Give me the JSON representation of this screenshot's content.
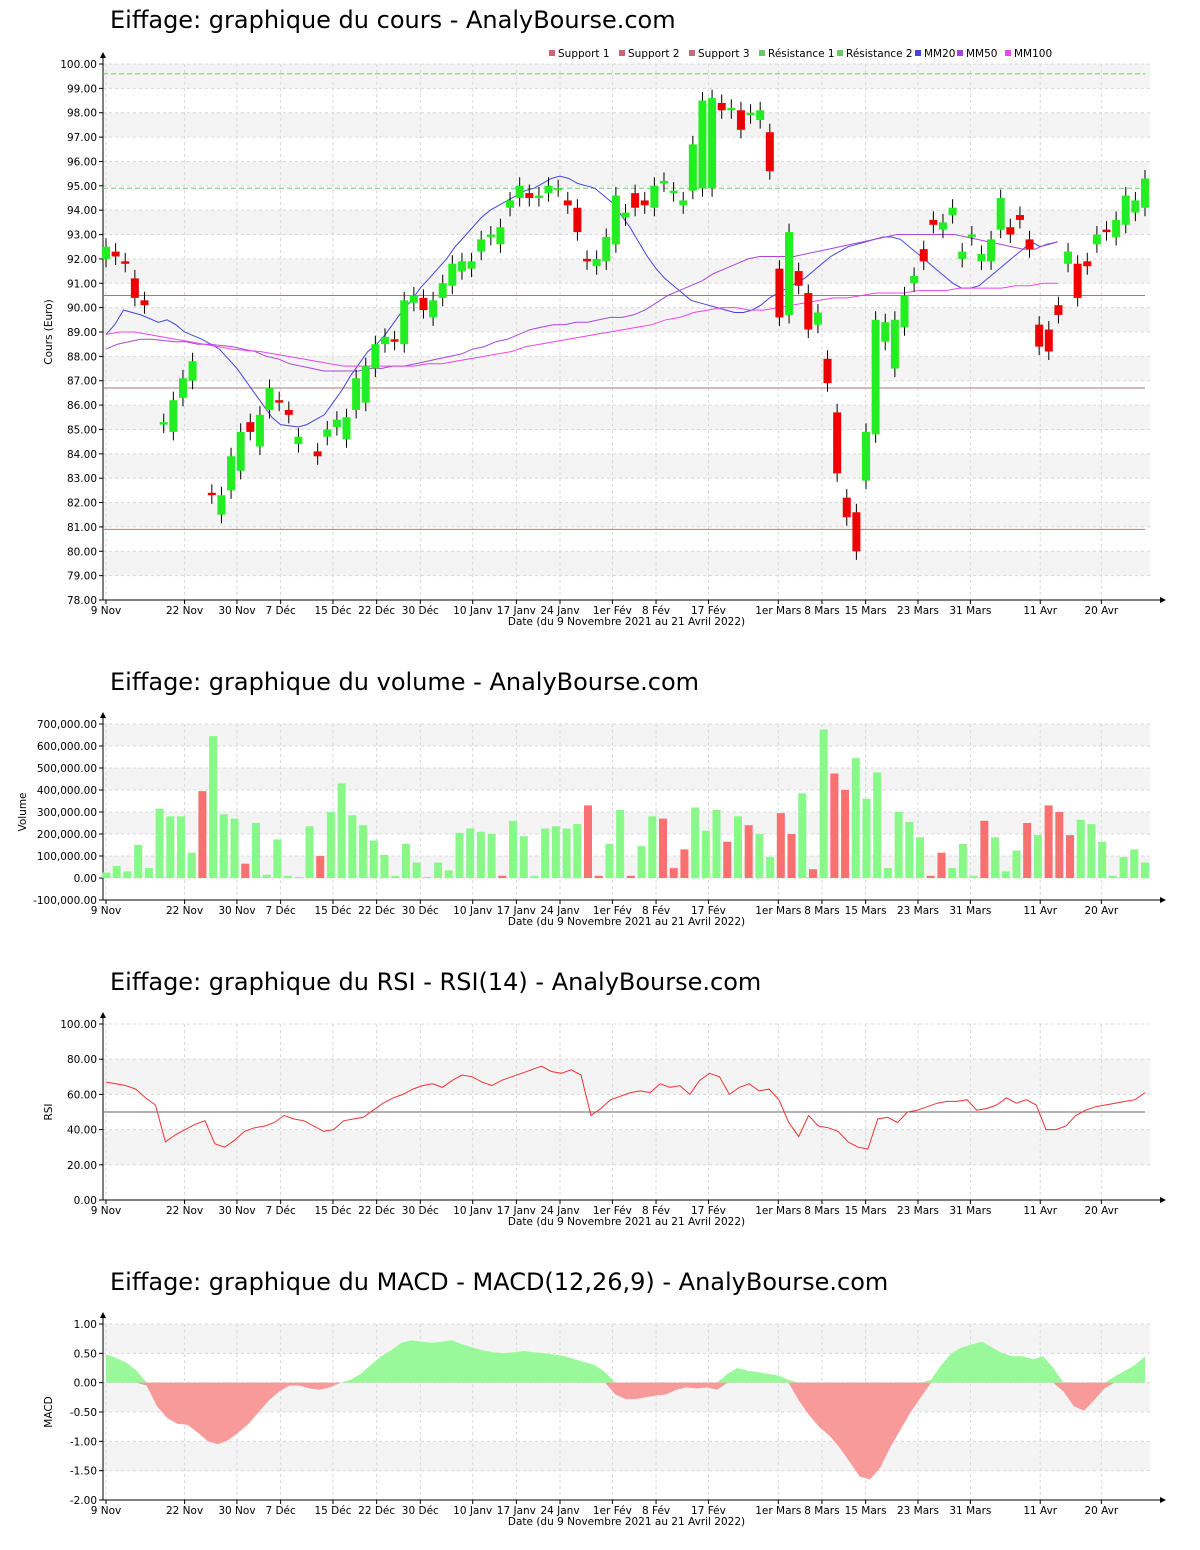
{
  "colors": {
    "up": "#22ee22",
    "down": "#ee0000",
    "vol_up": "#88f888",
    "vol_down": "#f87070",
    "support": "#cc6677",
    "resistance": "#66cc66",
    "mm20": "#4444dd",
    "mm50": "#aa44dd",
    "mm100": "#ee44ee",
    "rsi": "#ee3333"
  },
  "x_ticks": [
    "9 Nov",
    "22 Nov",
    "30 Nov",
    "7 Déc",
    "15 Déc",
    "22 Déc",
    "30 Déc",
    "10 Janv",
    "17 Janv",
    "24 Janv",
    "1er Fév",
    "8 Fév",
    "17 Fév",
    "1er Mars",
    "8 Mars",
    "15 Mars",
    "23 Mars",
    "31 Mars",
    "11 Avr",
    "20 Avr"
  ],
  "x_ticks_index": [
    0,
    9,
    15,
    20,
    26,
    31,
    36,
    42,
    47,
    52,
    58,
    63,
    69,
    77,
    82,
    87,
    93,
    99,
    107,
    114
  ],
  "x_axis_label": "Date (du 9 Novembre 2021 au 21 Avril 2022)",
  "price": {
    "title": "Eiffage: graphique du cours - AnalyBourse.com",
    "ylabel": "Cours (Euro)",
    "ylim": [
      78,
      100
    ],
    "y_ticks": [
      "78.00",
      "79.00",
      "80.00",
      "81.00",
      "82.00",
      "83.00",
      "84.00",
      "85.00",
      "86.00",
      "87.00",
      "88.00",
      "89.00",
      "90.00",
      "91.00",
      "92.00",
      "93.00",
      "94.00",
      "95.00",
      "96.00",
      "97.00",
      "98.00",
      "99.00",
      "100.00"
    ],
    "legend": [
      "Support 1",
      "Support 2",
      "Support 3",
      "Résistance 1",
      "Résistance 2",
      "MM20",
      "MM50",
      "MM100"
    ],
    "support1": 80.9,
    "support2": 86.7,
    "support3": 90.5,
    "resistance1": 94.9,
    "resistance2": 99.6,
    "chart_data": {
      "type": "candlestick",
      "open": [
        92,
        92.3,
        91.9,
        91.2,
        90.3,
        null,
        85.2,
        84.9,
        86.3,
        87,
        null,
        82.4,
        81.5,
        82.5,
        83.3,
        85.3,
        84.3,
        85.8,
        86.2,
        85.8,
        84.4,
        null,
        84.1,
        84.7,
        85.1,
        84.6,
        85.8,
        86.1,
        87.5,
        88.5,
        88.7,
        88.5,
        90.2,
        90.4,
        89.6,
        90.4,
        90.9,
        91.5,
        91.6,
        92.3,
        92.9,
        92.6,
        94.1,
        94.5,
        94.7,
        94.5,
        94.7,
        94.9,
        94.4,
        94.1,
        92,
        91.7,
        91.9,
        92.6,
        93.7,
        94.7,
        94.4,
        94.1,
        95.1,
        94.7,
        94.2,
        94.8,
        94.9,
        94.9,
        98.4,
        98.1,
        98.1,
        97.9,
        97.7,
        97.2,
        91.6,
        89.7,
        91.5,
        90.6,
        89.3,
        87.9,
        85.7,
        82.2,
        81.6,
        82.9,
        84.8,
        88.6,
        87.5,
        89.2,
        91,
        92.4,
        93.6,
        93.2,
        93.8,
        92,
        92.9,
        91.9,
        91.9,
        93.2,
        93.3,
        93.8,
        92.8,
        89.3,
        89.1,
        90.1,
        91.8,
        91.8,
        91.9,
        92.6,
        93.2,
        92.9,
        93.4,
        93.9,
        94.1
      ],
      "close": [
        92.5,
        92.1,
        91.8,
        90.4,
        90.1,
        null,
        85.3,
        86.2,
        87.1,
        87.8,
        null,
        82.3,
        82.3,
        83.9,
        84.9,
        84.9,
        85.6,
        86.7,
        86.1,
        85.6,
        84.7,
        null,
        83.9,
        85,
        85.4,
        85.5,
        87.1,
        87.6,
        88.5,
        88.8,
        88.6,
        90.3,
        90.5,
        89.9,
        90.3,
        91,
        91.8,
        91.9,
        91.9,
        92.8,
        93,
        93.3,
        94.4,
        95,
        94.5,
        94.6,
        95,
        94.9,
        94.2,
        93.1,
        91.9,
        92,
        92.9,
        94.6,
        93.9,
        94.1,
        94.2,
        95,
        95.2,
        94.8,
        94.4,
        96.7,
        98.5,
        98.6,
        98.1,
        98.2,
        97.3,
        98,
        98.1,
        95.6,
        89.6,
        93.1,
        90.9,
        89.1,
        89.8,
        86.9,
        83.2,
        81.4,
        80,
        84.9,
        89.5,
        89.4,
        89.5,
        90.5,
        91.3,
        91.9,
        93.4,
        93.5,
        94.1,
        92.3,
        93,
        92.2,
        92.8,
        94.5,
        93,
        93.6,
        92.4,
        88.4,
        88.2,
        89.7,
        92.3,
        90.4,
        91.7,
        93,
        93.1,
        93.6,
        94.6,
        94.4,
        95.3
      ]
    },
    "mm20": [
      88.9,
      89.3,
      89.9,
      89.8,
      89.7,
      null,
      89.4,
      89.5,
      89.3,
      89,
      null,
      88.7,
      88.5,
      88.3,
      87.9,
      87.5,
      87,
      86.5,
      86,
      85.5,
      85.2,
      null,
      85.1,
      85.2,
      85.4,
      85.6,
      86.1,
      86.6,
      87.2,
      87.7,
      88.2,
      88.5,
      88.9,
      89.4,
      89.9,
      90.3,
      90.8,
      91.2,
      91.6,
      92,
      92.5,
      92.9,
      93.3,
      93.7,
      94,
      94.2,
      94.4,
      94.6,
      94.8,
      94.9,
      95.1,
      95.3,
      95.4,
      95.3,
      95.1,
      95,
      94.9,
      94.6,
      94.3,
      93.8,
      93.3,
      92.7,
      92.1,
      91.6,
      91.2,
      90.9,
      90.6,
      90.3,
      90.2,
      90.1,
      90,
      89.9,
      89.8,
      89.8,
      89.9,
      90.1,
      90.4,
      90.6,
      90.8,
      91,
      91.2,
      91.5,
      91.8,
      92.1,
      92.3,
      92.5,
      92.6,
      92.7,
      92.8,
      92.9,
      92.9,
      92.8,
      92.5,
      92.2,
      91.9,
      91.6,
      91.3,
      91,
      90.8,
      90.8,
      90.9,
      91.2,
      91.5,
      91.8,
      92.1,
      92.4,
      92.7,
      92.5,
      92.6,
      92.7
    ],
    "mm50": [
      88.3,
      88.5,
      88.6,
      88.7,
      88.7,
      null,
      88.6,
      88.6,
      88.5,
      88.5,
      null,
      88.4,
      88.3,
      88.2,
      88,
      87.9,
      87.7,
      87.6,
      87.5,
      87.4,
      87.4,
      null,
      87.4,
      87.5,
      87.5,
      87.6,
      87.6,
      87.7,
      87.8,
      87.9,
      88,
      88.1,
      88.3,
      88.4,
      88.6,
      88.7,
      88.9,
      89.1,
      89.2,
      89.3,
      89.3,
      89.4,
      89.4,
      89.5,
      89.6,
      89.6,
      89.7,
      89.9,
      90.2,
      90.5,
      90.7,
      90.9,
      91.1,
      91.4,
      91.6,
      91.8,
      92,
      92.1,
      92.1,
      92.1,
      92.1,
      92.2,
      92.3,
      92.4,
      92.5,
      92.6,
      92.7,
      92.8,
      92.9,
      93,
      93,
      93,
      93,
      93,
      93,
      92.9,
      92.8,
      92.7,
      92.6,
      92.5,
      92.4,
      92.4,
      92.6,
      92.7
    ],
    "mm100": [
      88.9,
      89,
      89,
      88.9,
      88.8,
      null,
      88.6,
      88.5,
      88.4,
      88.3,
      null,
      88.2,
      88.1,
      88,
      87.9,
      87.8,
      87.7,
      87.6,
      87.6,
      87.6,
      87.6,
      null,
      87.6,
      87.7,
      87.7,
      87.8,
      87.9,
      88,
      88.1,
      88.2,
      88.4,
      88.5,
      88.6,
      88.7,
      88.8,
      88.9,
      89,
      89.1,
      89.2,
      89.3,
      89.5,
      89.6,
      89.8,
      89.9,
      90,
      90,
      89.9,
      89.9,
      90,
      90.1,
      90.2,
      90.3,
      90.4,
      90.4,
      90.5,
      90.6,
      90.6,
      90.6,
      90.7,
      90.7,
      90.7,
      90.8,
      90.8,
      90.8,
      90.8,
      90.9,
      90.9,
      91,
      91
    ]
  },
  "volume": {
    "title": "Eiffage: graphique du volume - AnalyBourse.com",
    "ylabel": "Volume",
    "ylim": [
      -100000,
      700000
    ],
    "y_ticks": [
      "-100,000.00",
      "0.00",
      "100,000.00",
      "200,000.00",
      "300,000.00",
      "400,000.00",
      "500,000.00",
      "600,000.00",
      "700,000.00"
    ],
    "chart_data": {
      "type": "bar",
      "values": [
        25000,
        55000,
        30000,
        150000,
        45000,
        315000,
        280000,
        280000,
        115000,
        395000,
        645000,
        290000,
        270000,
        65000,
        250000,
        15000,
        175000,
        10000,
        5000,
        235000,
        100000,
        300000,
        430000,
        285000,
        240000,
        170000,
        105000,
        10000,
        155000,
        70000,
        5000,
        70000,
        35000,
        205000,
        225000,
        210000,
        200000,
        10000,
        260000,
        190000,
        10000,
        225000,
        235000,
        225000,
        245000,
        330000,
        10000,
        155000,
        310000,
        10000,
        145000,
        280000,
        270000,
        45000,
        130000,
        320000,
        215000,
        310000,
        165000,
        280000,
        240000,
        200000,
        95000,
        295000,
        200000,
        385000,
        40000,
        675000,
        475000,
        400000,
        545000,
        360000,
        480000,
        45000,
        300000,
        255000,
        185000,
        10000,
        115000,
        45000,
        155000,
        10000,
        260000,
        185000,
        30000,
        125000,
        250000,
        195000,
        330000,
        300000,
        195000,
        265000,
        245000,
        165000,
        10000,
        95000,
        130000,
        70000
      ],
      "up": [
        true,
        true,
        true,
        true,
        true,
        true,
        true,
        true,
        true,
        false,
        true,
        true,
        true,
        false,
        true,
        true,
        true,
        true,
        true,
        true,
        false,
        true,
        true,
        true,
        true,
        true,
        true,
        true,
        true,
        true,
        true,
        true,
        true,
        true,
        true,
        true,
        true,
        false,
        true,
        true,
        true,
        true,
        true,
        true,
        true,
        false,
        false,
        true,
        true,
        false,
        true,
        true,
        false,
        false,
        false,
        true,
        true,
        true,
        false,
        true,
        false,
        true,
        true,
        false,
        false,
        true,
        false,
        true,
        false,
        false,
        true,
        true,
        true,
        true,
        true,
        true,
        true,
        false,
        false,
        true,
        true,
        true,
        false,
        true,
        true,
        true,
        false,
        true,
        false,
        false,
        false,
        true,
        true,
        true,
        true,
        true,
        true,
        true
      ]
    }
  },
  "rsi": {
    "title": "Eiffage: graphique du RSI - RSI(14) - AnalyBourse.com",
    "ylabel": "RSI",
    "ylim": [
      0,
      100
    ],
    "y_ticks": [
      "0.00",
      "20.00",
      "40.00",
      "60.00",
      "80.00",
      "100.00"
    ],
    "reference": 50,
    "chart_data": {
      "type": "line",
      "values": [
        67,
        66,
        65,
        63,
        58,
        54,
        33,
        37,
        40,
        43,
        45,
        32,
        30,
        34,
        39,
        41,
        42,
        44,
        48,
        46,
        45,
        42,
        39,
        40,
        45,
        46,
        47,
        51,
        55,
        58,
        60,
        63,
        65,
        66,
        64,
        68,
        71,
        70,
        67,
        65,
        68,
        70,
        72,
        74,
        76,
        73,
        72,
        74,
        71,
        48,
        52,
        57,
        59,
        61,
        62,
        61,
        66,
        64,
        65,
        60,
        68,
        72,
        70,
        60,
        64,
        66,
        62,
        63,
        57,
        44,
        36,
        48,
        42,
        41,
        39,
        33,
        30,
        29,
        46,
        47,
        44,
        50,
        51,
        53,
        55,
        56,
        56,
        57,
        51,
        52,
        54,
        58,
        55,
        57,
        54,
        40,
        40,
        42,
        48,
        51,
        53,
        54,
        55,
        56,
        57,
        61
      ]
    }
  },
  "macd": {
    "title": "Eiffage: graphique du MACD - MACD(12,26,9) - AnalyBourse.com",
    "ylabel": "MACD",
    "ylim": [
      -2,
      1
    ],
    "y_ticks": [
      "-2.00",
      "-1.50",
      "-1.00",
      "-0.50",
      "0.00",
      "0.50",
      "1.00"
    ],
    "chart_data": {
      "type": "area",
      "values": [
        0.48,
        0.42,
        0.34,
        0.2,
        -0.05,
        -0.4,
        -0.6,
        -0.7,
        -0.72,
        -0.85,
        -1.0,
        -1.05,
        -0.98,
        -0.85,
        -0.7,
        -0.5,
        -0.3,
        -0.15,
        -0.05,
        -0.05,
        -0.1,
        -0.12,
        -0.08,
        0.0,
        0.05,
        0.15,
        0.3,
        0.45,
        0.55,
        0.68,
        0.72,
        0.7,
        0.68,
        0.7,
        0.72,
        0.65,
        0.6,
        0.55,
        0.52,
        0.5,
        0.52,
        0.54,
        0.52,
        0.5,
        0.48,
        0.45,
        0.4,
        0.35,
        0.3,
        0.18,
        -0.2,
        -0.28,
        -0.28,
        -0.25,
        -0.22,
        -0.2,
        -0.12,
        -0.08,
        -0.1,
        -0.08,
        -0.12,
        0.15,
        0.25,
        0.2,
        0.18,
        0.15,
        0.12,
        0.05,
        -0.3,
        -0.55,
        -0.75,
        -0.9,
        -1.1,
        -1.35,
        -1.6,
        -1.65,
        -1.45,
        -1.1,
        -0.8,
        -0.5,
        -0.25,
        0.05,
        0.3,
        0.5,
        0.6,
        0.65,
        0.7,
        0.6,
        0.5,
        0.45,
        0.45,
        0.4,
        0.45,
        0.25,
        -0.15,
        -0.4,
        -0.48,
        -0.3,
        -0.1,
        0.1,
        0.2,
        0.3,
        0.45
      ]
    }
  }
}
